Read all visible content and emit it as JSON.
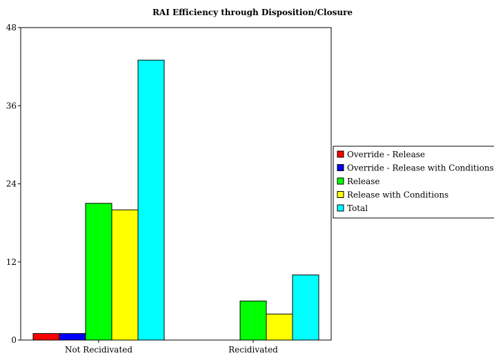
{
  "chart_data": {
    "type": "bar",
    "title": "RAI Efficiency through Disposition/Closure",
    "xlabel": "",
    "ylabel": "",
    "categories": [
      "Not Recidivated",
      "Recidivated"
    ],
    "ylim": [
      0,
      48
    ],
    "yticks": [
      "0",
      "12",
      "24",
      "36",
      "48"
    ],
    "grid": false,
    "legend_position": "right",
    "series": [
      {
        "name": "Override - Release",
        "color": "#ff0000",
        "values": [
          1,
          0
        ]
      },
      {
        "name": "Override - Release with Conditions",
        "color": "#0000ff",
        "values": [
          1,
          0
        ]
      },
      {
        "name": "Release",
        "color": "#00ff00",
        "values": [
          21,
          6
        ]
      },
      {
        "name": "Release with Conditions",
        "color": "#ffff00",
        "values": [
          20,
          4
        ]
      },
      {
        "name": "Total",
        "color": "#00ffff",
        "values": [
          43,
          10
        ]
      }
    ]
  }
}
